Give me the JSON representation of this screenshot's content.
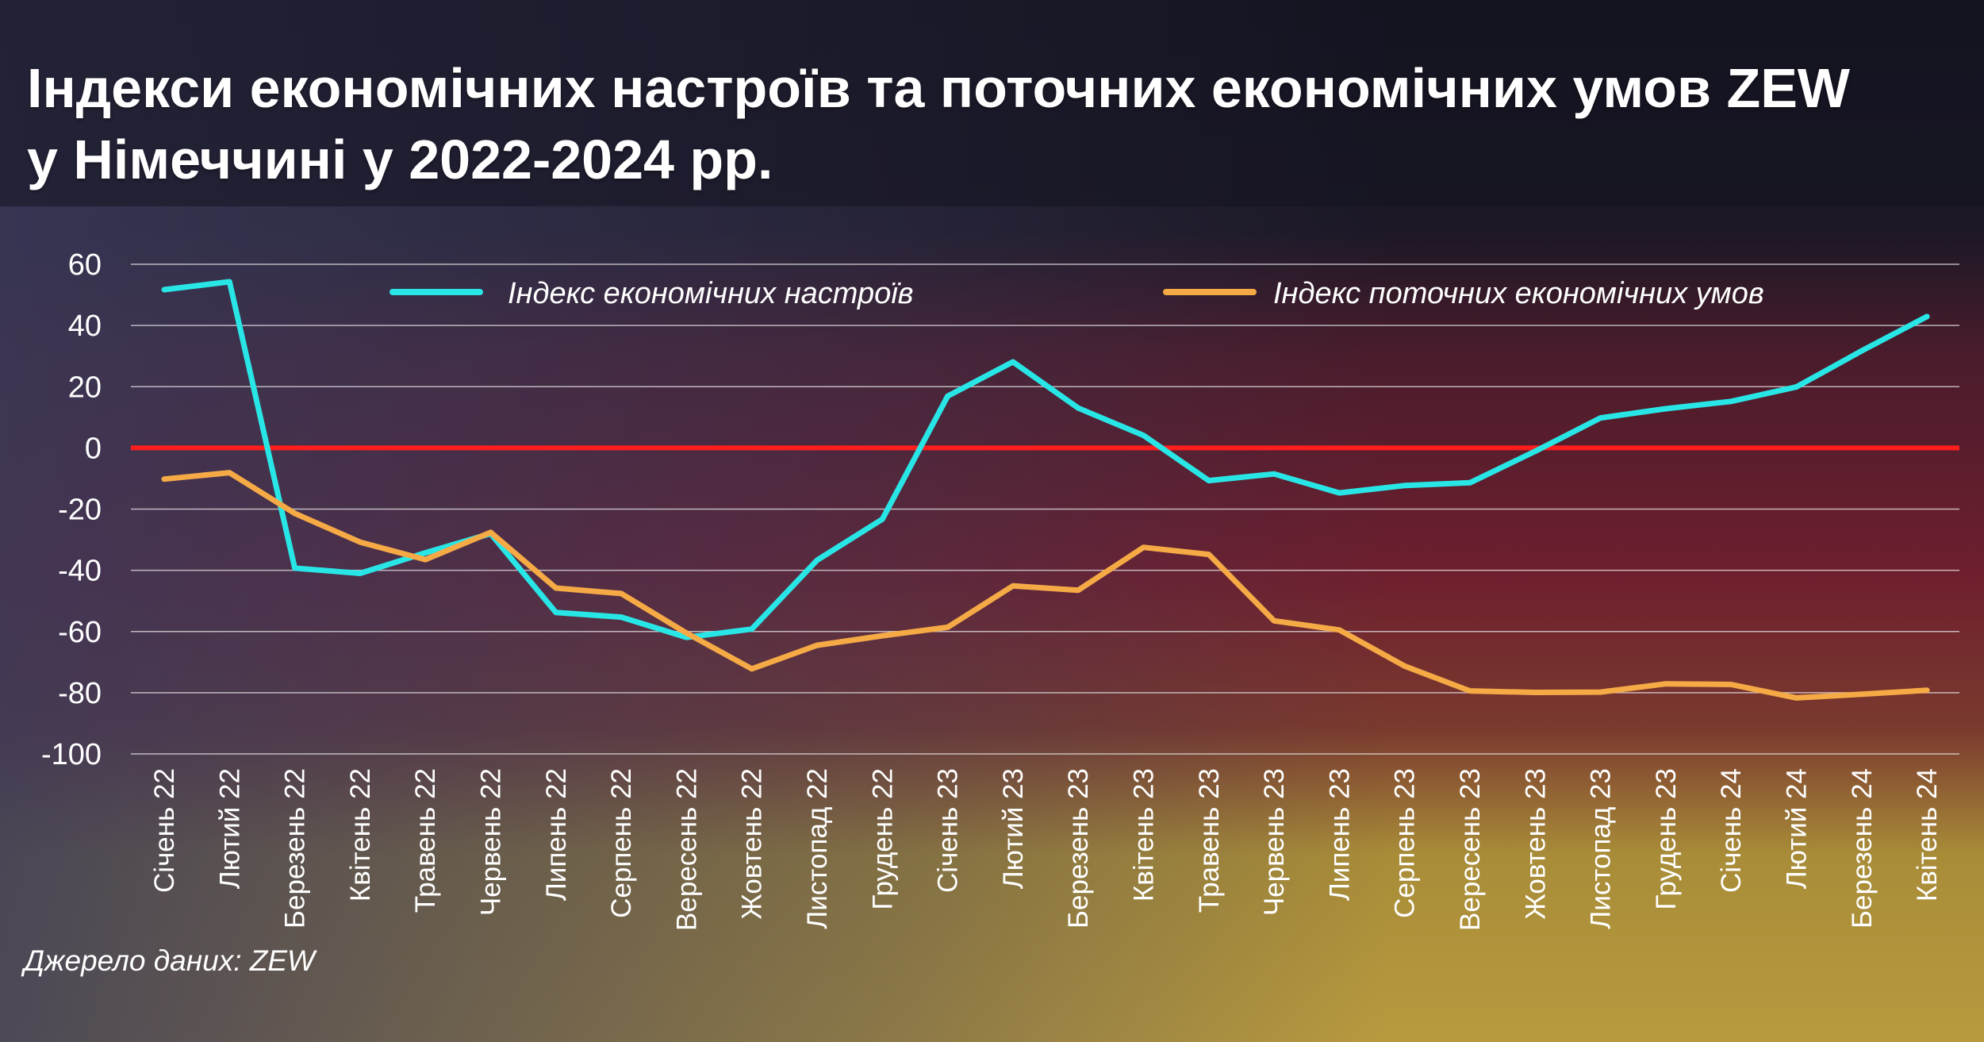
{
  "title_line1": "Індекси економічних настроїв та поточних економічних умов ZEW",
  "title_line2": "у Німеччині у 2022-2024 рр.",
  "source": "Джерело даних: ZEW",
  "colors": {
    "sentiment": "#29e6e6",
    "conditions": "#f5aa46",
    "zero_line": "#ff1e1e",
    "grid": "#e6e6e6"
  },
  "chart_data": {
    "type": "line",
    "categories": [
      "Січень 22",
      "Лютий 22",
      "Березень 22",
      "Квітень 22",
      "Травень 22",
      "Червень 22",
      "Липень 22",
      "Серпень 22",
      "Вересень 22",
      "Жовтень 22",
      "Листопад 22",
      "Грудень 22",
      "Січень 23",
      "Лютий 23",
      "Березень 23",
      "Квітень 23",
      "Травень 23",
      "Червень 23",
      "Липень 23",
      "Серпень 23",
      "Вересень 23",
      "Жовтень 23",
      "Листопад 23",
      "Грудень 23",
      "Січень 24",
      "Лютий 24",
      "Березень 24",
      "Квітень 24"
    ],
    "series": [
      {
        "name": "Індекс економічних настроїв",
        "color": "#29e6e6",
        "values": [
          51.7,
          54.3,
          -39.3,
          -41.0,
          -34.3,
          -28.0,
          -53.8,
          -55.3,
          -61.9,
          -59.2,
          -36.7,
          -23.3,
          16.9,
          28.1,
          13.0,
          4.1,
          -10.7,
          -8.5,
          -14.7,
          -12.3,
          -11.4,
          -1.1,
          9.8,
          12.8,
          15.2,
          19.9,
          31.7,
          42.9
        ]
      },
      {
        "name": "Індекс поточних економічних умов",
        "color": "#f5aa46",
        "values": [
          -10.2,
          -8.1,
          -21.4,
          -30.8,
          -36.5,
          -27.6,
          -45.8,
          -47.6,
          -60.5,
          -72.2,
          -64.5,
          -61.4,
          -58.6,
          -45.1,
          -46.5,
          -32.5,
          -34.8,
          -56.5,
          -59.5,
          -71.3,
          -79.4,
          -79.9,
          -79.8,
          -77.1,
          -77.3,
          -81.7,
          -80.5,
          -79.2
        ]
      }
    ],
    "ylim": [
      -100,
      60
    ],
    "yticks": [
      "60",
      "40",
      "20",
      "0",
      "-20",
      "-40",
      "-60",
      "-80",
      "-100"
    ],
    "grid": true,
    "legend_position": "top",
    "zero_line": true
  }
}
